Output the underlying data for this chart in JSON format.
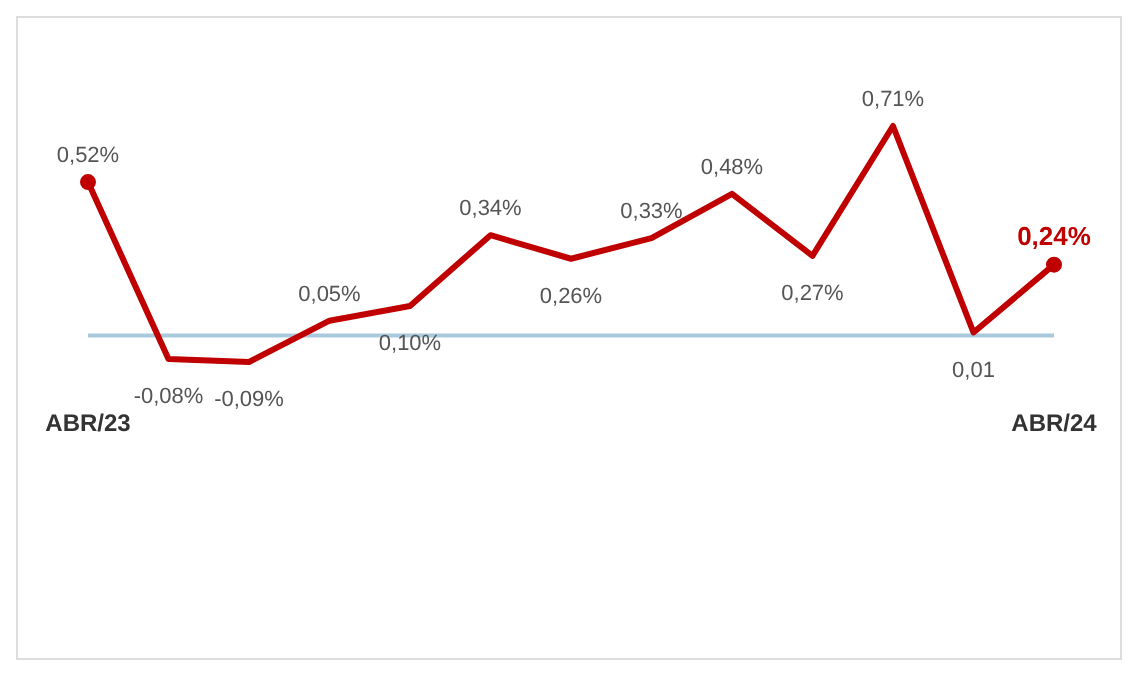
{
  "chart_data": {
    "type": "line",
    "categories": [
      "ABR/23",
      null,
      null,
      null,
      null,
      null,
      null,
      null,
      null,
      null,
      null,
      null,
      "ABR/24"
    ],
    "series": [
      {
        "color": "#c00000",
        "values": [
          0.52,
          -0.08,
          -0.09,
          0.05,
          0.1,
          0.34,
          0.26,
          0.33,
          0.48,
          0.27,
          0.71,
          0.01,
          0.24
        ],
        "value_labels": [
          "0,52%",
          "-0,08%",
          "-0,09%",
          "0,05%",
          "0,10%",
          "0,34%",
          "0,26%",
          "0,33%",
          "0,48%",
          "0,27%",
          "0,71%",
          "0,01",
          "0,24%"
        ]
      }
    ],
    "ref_lines": [
      {
        "axis": "y",
        "value": 0,
        "color": "#a9c9dc"
      }
    ],
    "grid": false,
    "legend": false
  }
}
